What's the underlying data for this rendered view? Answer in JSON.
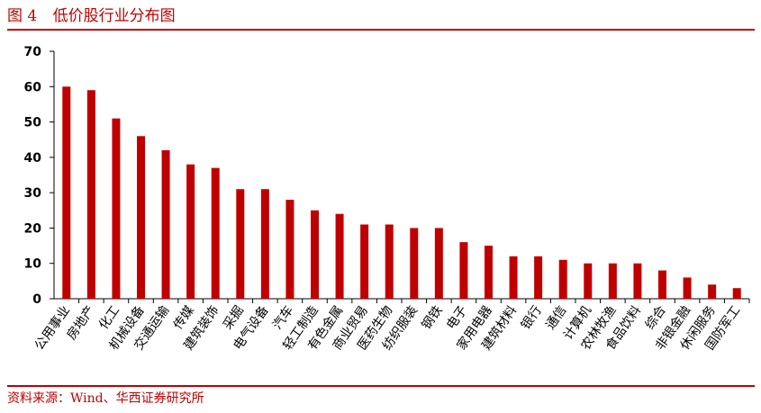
{
  "header": {
    "figure_label": "图 4",
    "title": "低价股行业分布图"
  },
  "source": "资料来源：Wind、华西证券研究所",
  "colors": {
    "bar": "#c00000",
    "accent": "#c00000",
    "axis": "#000000"
  },
  "chart_data": {
    "type": "bar",
    "title": "低价股行业分布图",
    "xlabel": "",
    "ylabel": "",
    "ylim": [
      0,
      70
    ],
    "yticks": [
      0,
      10,
      20,
      30,
      40,
      50,
      60,
      70
    ],
    "grid": false,
    "categories": [
      "公用事业",
      "房地产",
      "化工",
      "机械设备",
      "交通运输",
      "传媒",
      "建筑装饰",
      "采掘",
      "电气设备",
      "汽车",
      "轻工制造",
      "有色金属",
      "商业贸易",
      "医药生物",
      "纺织服装",
      "钢铁",
      "电子",
      "家用电器",
      "建筑材料",
      "银行",
      "通信",
      "计算机",
      "农林牧渔",
      "食品饮料",
      "综合",
      "非银金融",
      "休闲服务",
      "国防军工"
    ],
    "values": [
      60,
      59,
      51,
      46,
      42,
      38,
      37,
      31,
      31,
      28,
      25,
      24,
      21,
      21,
      20,
      20,
      16,
      15,
      12,
      12,
      11,
      10,
      10,
      10,
      8,
      6,
      4,
      3
    ]
  }
}
